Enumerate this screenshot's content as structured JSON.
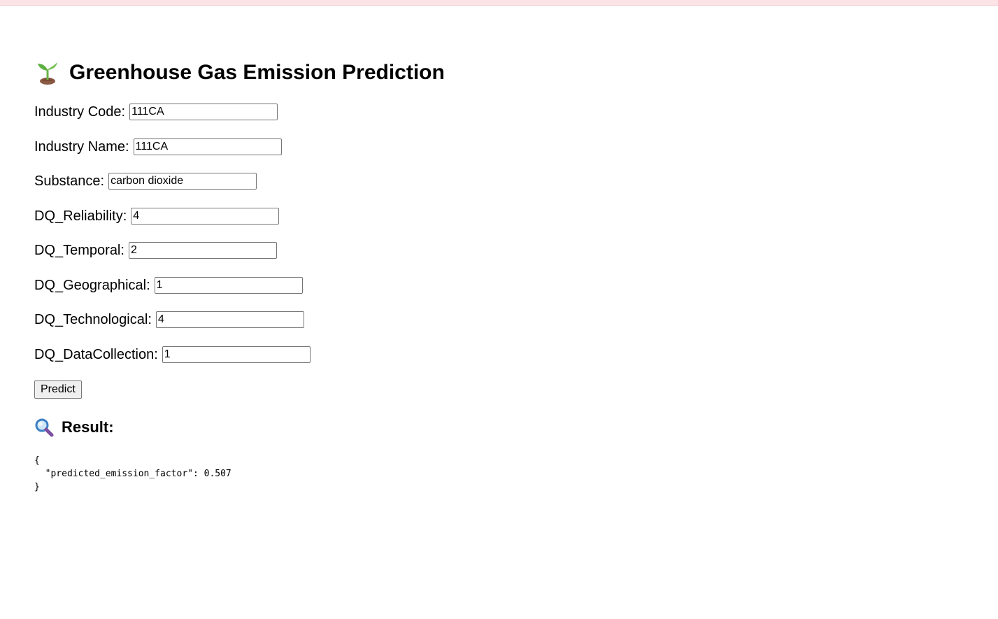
{
  "header": {
    "title": "Greenhouse Gas Emission Prediction",
    "icon": "seedling-icon"
  },
  "form": {
    "fields": [
      {
        "label": "Industry Code:",
        "value": "111CA"
      },
      {
        "label": "Industry Name:",
        "value": "111CA"
      },
      {
        "label": "Substance:",
        "value": "carbon dioxide"
      },
      {
        "label": "DQ_Reliability:",
        "value": "4"
      },
      {
        "label": "DQ_Temporal:",
        "value": "2"
      },
      {
        "label": "DQ_Geographical:",
        "value": "1"
      },
      {
        "label": "DQ_Technological:",
        "value": "4"
      },
      {
        "label": "DQ_DataCollection:",
        "value": "1"
      }
    ],
    "submit_label": "Predict"
  },
  "result": {
    "heading": "Result:",
    "icon": "magnifier-icon",
    "output": "{\n  \"predicted_emission_factor\": 0.507\n}"
  },
  "colors": {
    "top_strip": "#fbe3e6",
    "button_bg": "#efefef"
  }
}
